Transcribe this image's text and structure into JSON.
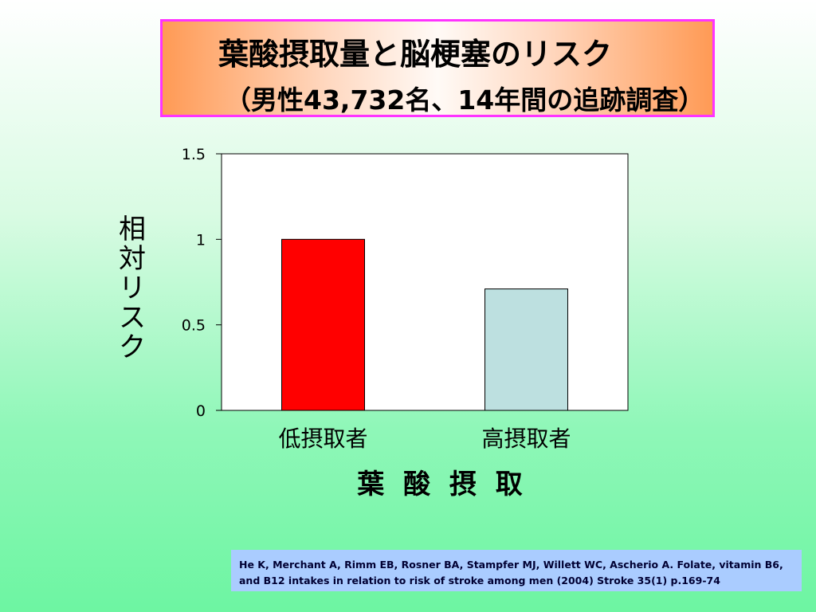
{
  "title": {
    "line1": "葉酸摂取量と脳梗塞のリスク",
    "line2": "（男性43,732名、14年間の追跡調査）"
  },
  "colors": {
    "bar_low": "#ff0000",
    "bar_high": "#bde0e0"
  },
  "chart_data": {
    "type": "bar",
    "categories": [
      "低摂取者",
      "高摂取者"
    ],
    "values": [
      1.0,
      0.71
    ],
    "ylabel": "相対リスク",
    "xlabel": "葉 酸 摂 取",
    "ylim": [
      0,
      1.5
    ],
    "yticks": [
      "0",
      "0.5",
      "1",
      "1.5"
    ],
    "grid": false
  },
  "reference": "He K, Merchant A, Rimm EB, Rosner BA, Stampfer MJ, Willett WC, Ascherio A. Folate, vitamin B6, and B12 intakes in relation to risk of stroke among men (2004) Stroke 35(1) p.169-74"
}
